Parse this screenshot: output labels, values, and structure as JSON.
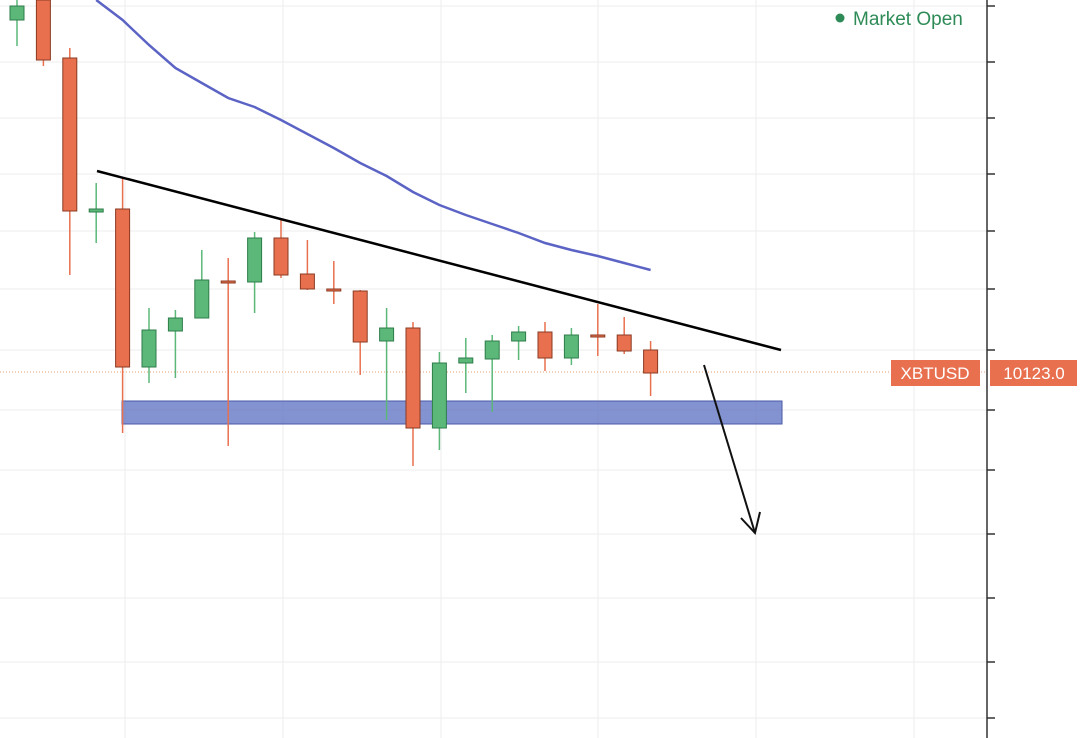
{
  "chart_data": {
    "type": "candlestick",
    "status": "Market Open",
    "symbol": "XBTUSD",
    "last_price": 10123.0,
    "last_price_label": "10123.0",
    "ylim": [
      8659,
      11611
    ],
    "up_color": "#5bb878",
    "down_color": "#e8704f",
    "ma_color": "#5b63c4",
    "open": [
      11531,
      11611,
      11379,
      10763,
      10775,
      10143,
      10287,
      10339,
      10487,
      10483,
      10659,
      10515,
      10455,
      10447,
      10247,
      10299,
      9899,
      10159,
      10175,
      10247,
      10283,
      10179,
      10271,
      10271,
      10211
    ],
    "high": [
      11611,
      11611,
      11419,
      10879,
      10899,
      10379,
      10371,
      10611,
      10579,
      10683,
      10739,
      10651,
      10567,
      10451,
      10379,
      10323,
      10203,
      10259,
      10271,
      10307,
      10323,
      10299,
      10395,
      10343,
      10247
    ],
    "low": [
      11427,
      11347,
      10511,
      10639,
      9879,
      10079,
      10099,
      10339,
      9827,
      10359,
      10499,
      10451,
      10395,
      10111,
      9931,
      9747,
      9811,
      10039,
      9963,
      10171,
      10127,
      10151,
      10187,
      10195,
      10027
    ],
    "close": [
      11587,
      11371,
      10767,
      10775,
      10143,
      10291,
      10339,
      10491,
      10479,
      10659,
      10511,
      10455,
      10447,
      10243,
      10299,
      9899,
      10159,
      10179,
      10247,
      10283,
      10179,
      10271,
      10263,
      10207,
      10119
    ],
    "ma": [
      null,
      null,
      null,
      11611,
      11531,
      11431,
      11339,
      11279,
      11219,
      11183,
      11131,
      11075,
      11019,
      10959,
      10907,
      10843,
      10791,
      10751,
      10715,
      10679,
      10639,
      10611,
      10587,
      10559,
      10531
    ]
  }
}
